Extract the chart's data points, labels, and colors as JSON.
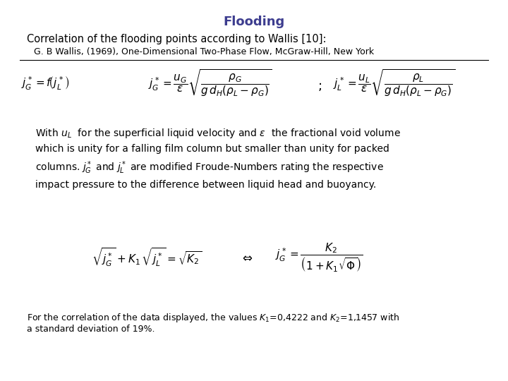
{
  "title": "Flooding",
  "title_color": "#3d3d8f",
  "title_fontsize": 13,
  "bg_color": "#ffffff",
  "line1": "Correlation of the flooding points according to Wallis [10]:",
  "line2": "G. B Wallis, (1969), One-Dimensional Two-Phase Flow, McGraw-Hill, New York",
  "formula1": "$j_G^* = f\\!\\left(j_L^*\\right)$",
  "formula2": "$j_G^* = \\dfrac{u_G}{\\varepsilon} \\sqrt{\\dfrac{\\rho_G}{g\\,d_H\\left(\\rho_L - \\rho_G\\right)}}$",
  "semicolon": "$;$",
  "formula3": "$j_L^* = \\dfrac{u_L}{\\varepsilon} \\sqrt{\\dfrac{\\rho_L}{g\\,d_H\\left(\\rho_L - \\rho_G\\right)}}$",
  "text_with": "With $u_L$  for the superficial liquid velocity and $\\varepsilon$  the fractional void volume\nwhich is unity for a falling film column but smaller than unity for packed\ncolumns. $j_G^*$ and $j_L^*$ are modified Froude-Numbers rating the respective\nimpact pressure to the difference between liquid head and buoyancy.",
  "formula4": "$\\sqrt{j_G^*} + K_1\\,\\sqrt{j_L^*} = \\sqrt{K_2}$",
  "arrow": "$\\Leftrightarrow$",
  "formula5": "$j_G^* = \\dfrac{K_2}{\\left(1 + K_1\\sqrt{\\Phi}\\right)}$",
  "footer1": "For the correlation of the data displayed, the values $K_1$=0,4222 and $K_2$=1,1457 with",
  "footer2": "a standard deviation of 19%.",
  "line1_fontsize": 10.5,
  "line2_fontsize": 9.0,
  "text_fontsize": 10.0,
  "footer_fontsize": 9.0,
  "formula_fontsize": 11,
  "formula_small_fontsize": 11
}
